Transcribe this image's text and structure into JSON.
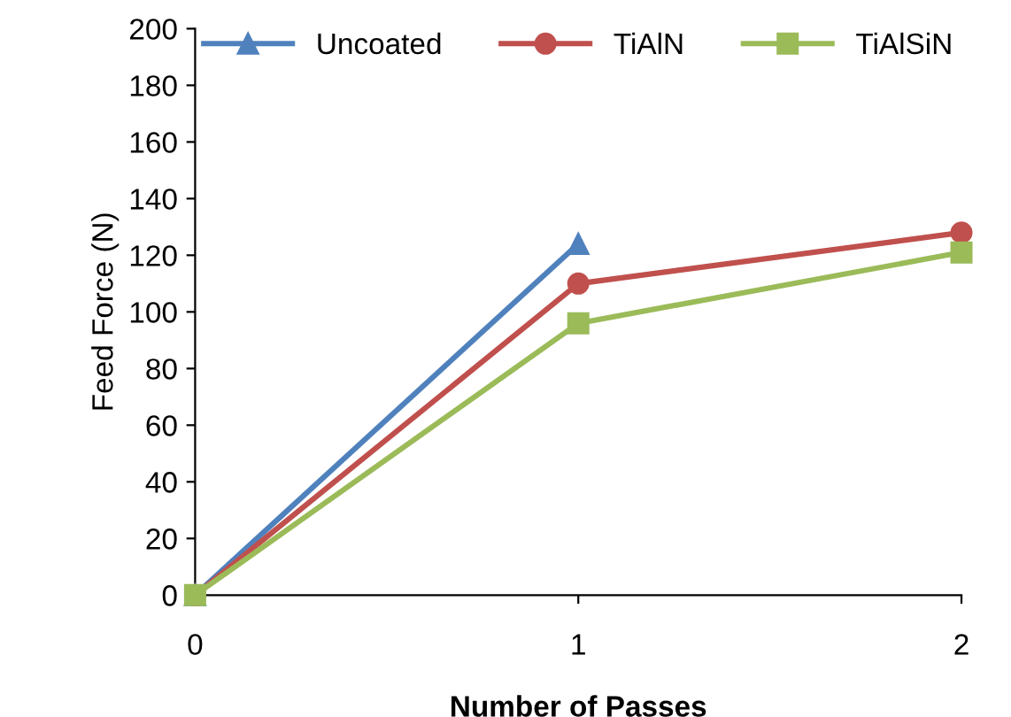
{
  "chart_data": {
    "type": "line",
    "xlabel": "Number of Passes",
    "ylabel": "Feed Force (N)",
    "x": [
      0,
      1,
      2
    ],
    "xlim": [
      0,
      2
    ],
    "xticks": [
      0,
      1,
      2
    ],
    "ylim": [
      0,
      200
    ],
    "yticks": [
      0,
      20,
      40,
      60,
      80,
      100,
      120,
      140,
      160,
      180,
      200
    ],
    "grid": false,
    "legend": "top",
    "line_style": "solid",
    "series": [
      {
        "name": "Uncoated",
        "color": "#4f81bd",
        "marker": "triangle",
        "x": [
          0,
          1
        ],
        "values": [
          0,
          124
        ]
      },
      {
        "name": "TiAlN",
        "color": "#c0504d",
        "marker": "circle",
        "values": [
          0,
          110,
          128
        ]
      },
      {
        "name": "TiAlSiN",
        "color": "#9bbb59",
        "marker": "square",
        "values": [
          0,
          96,
          121
        ]
      }
    ]
  }
}
